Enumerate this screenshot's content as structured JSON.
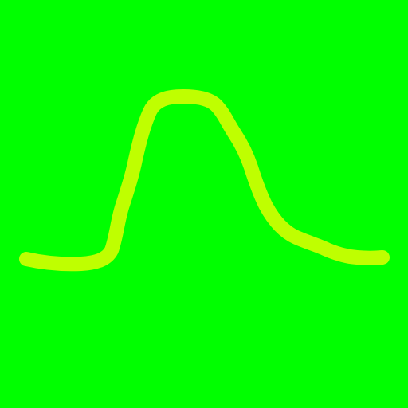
{
  "canvas": {
    "background_color": "#00ff00"
  },
  "drawing": {
    "stroke_color": "#bfff00",
    "shape": "bell-curve"
  }
}
